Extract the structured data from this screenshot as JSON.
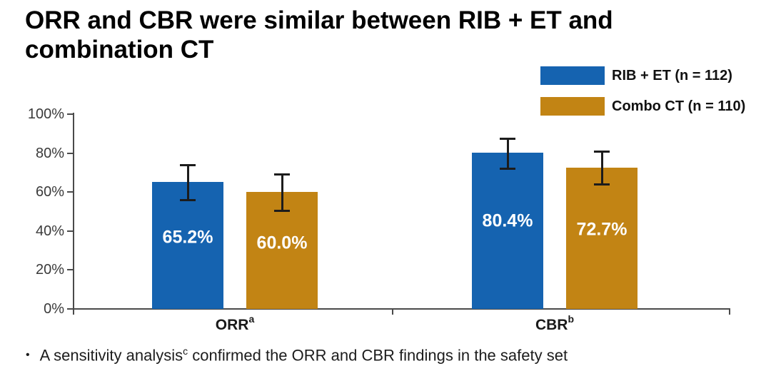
{
  "title": {
    "line1": "ORR and CBR were similar between RIB + ET and",
    "line2": "combination CT"
  },
  "footnote": {
    "bullet": "•",
    "pre": "A sensitivity analysis",
    "sup": "c",
    "post": " confirmed the ORR and CBR findings in the safety set"
  },
  "chart_data": {
    "type": "bar",
    "categories": [
      "ORR",
      "CBR"
    ],
    "category_superscripts": [
      "a",
      "b"
    ],
    "series": [
      {
        "name": "RIB + ET (n = 112)",
        "color": "#1563b0",
        "values": [
          65.2,
          80.4
        ],
        "error_low": [
          55.6,
          71.8
        ],
        "error_high": [
          74.0,
          87.4
        ]
      },
      {
        "name": "Combo CT (n = 110)",
        "color": "#c28414",
        "values": [
          60.0,
          72.7
        ],
        "error_low": [
          50.2,
          63.6
        ],
        "error_high": [
          69.3,
          81.0
        ]
      }
    ],
    "bar_labels": [
      "65.2%",
      "60.0%",
      "80.4%",
      "72.7%"
    ],
    "ylim": [
      0,
      100
    ],
    "ytick_labels": [
      "0%",
      "20%",
      "40%",
      "60%",
      "80%",
      "100%"
    ],
    "grid": false,
    "legend_position": "top-right",
    "error_bars": true,
    "xlabel": "",
    "ylabel": ""
  }
}
